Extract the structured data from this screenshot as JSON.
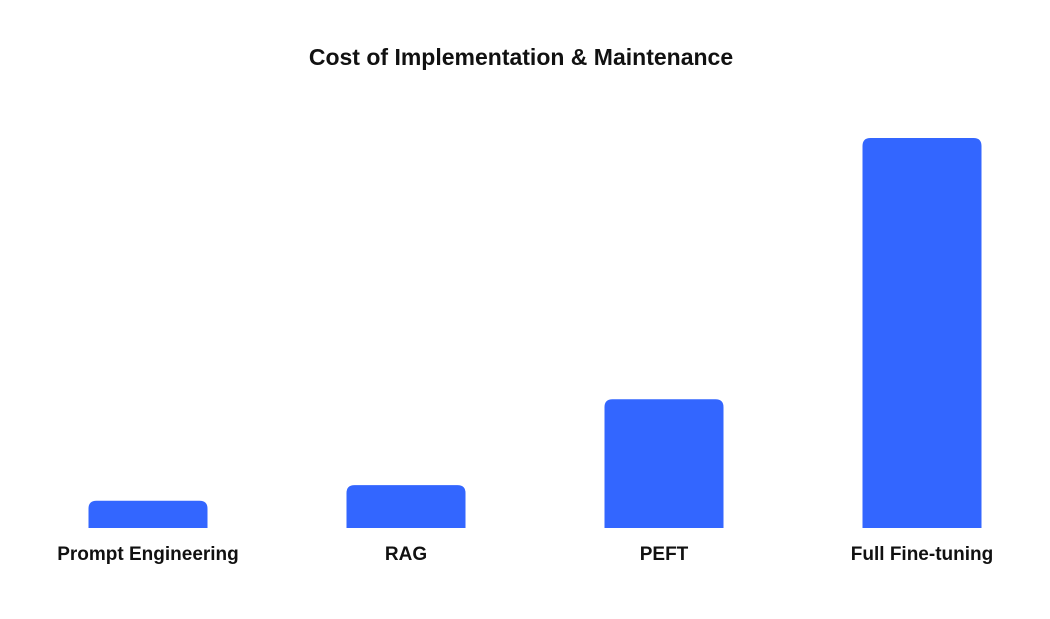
{
  "chart_data": {
    "type": "bar",
    "title": "Cost of Implementation & Maintenance",
    "categories": [
      "Prompt Engineering",
      "RAG",
      "PEFT",
      "Full Fine-tuning"
    ],
    "values": [
      7,
      11,
      33,
      100
    ],
    "xlabel": "",
    "ylabel": "",
    "ylim": [
      0,
      100
    ],
    "grid": false,
    "bar_color": "#3366FF"
  }
}
